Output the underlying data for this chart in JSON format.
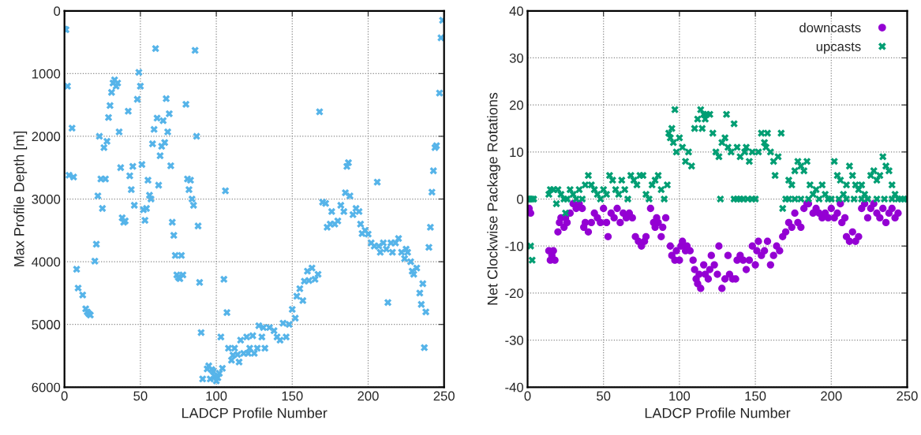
{
  "chart_data": [
    {
      "type": "scatter",
      "xlabel": "LADCP Profile Number",
      "ylabel": "Max Profile Depth [m]",
      "xlim": [
        0,
        250
      ],
      "ylim": [
        6000,
        0
      ],
      "xticks": [
        0,
        50,
        100,
        150,
        200,
        250
      ],
      "yticks": [
        0,
        1000,
        2000,
        3000,
        4000,
        5000,
        6000
      ],
      "grid": true,
      "legend": false,
      "series": [
        {
          "color": "#56b4e9",
          "marker": "cross",
          "x": [
            0,
            1,
            2,
            3,
            5,
            6,
            8,
            9,
            12,
            14,
            15,
            16,
            17,
            20,
            21,
            22,
            23,
            24,
            25,
            26,
            27,
            28,
            29,
            30,
            31,
            32,
            33,
            34,
            35,
            36,
            37,
            38,
            39,
            40,
            42,
            43,
            44,
            45,
            46,
            48,
            49,
            50,
            51,
            52,
            53,
            54,
            55,
            56,
            57,
            58,
            59,
            60,
            61,
            62,
            63,
            64,
            65,
            66,
            67,
            68,
            69,
            70,
            71,
            72,
            73,
            74,
            75,
            76,
            77,
            78,
            80,
            81,
            82,
            83,
            84,
            85,
            86,
            87,
            88,
            89,
            90,
            91,
            94,
            95,
            96,
            97,
            98,
            99,
            100,
            101,
            102,
            103,
            104,
            105,
            106,
            107,
            108,
            110,
            111,
            112,
            114,
            115,
            116,
            118,
            120,
            121,
            122,
            124,
            125,
            127,
            128,
            130,
            131,
            132,
            135,
            138,
            140,
            142,
            144,
            146,
            148,
            150,
            152,
            153,
            155,
            157,
            158,
            160,
            161,
            163,
            165,
            167,
            168,
            170,
            172,
            173,
            175,
            176,
            178,
            180,
            182,
            184,
            185,
            186,
            187,
            188,
            190,
            192,
            194,
            195,
            196,
            198,
            200,
            202,
            204,
            206,
            207,
            208,
            210,
            212,
            213,
            215,
            216,
            218,
            220,
            222,
            224,
            225,
            226,
            228,
            229,
            230,
            232,
            234,
            235,
            236,
            237,
            238,
            240,
            241,
            242,
            243,
            244,
            245,
            247,
            248,
            249
          ],
          "values": [
            290,
            300,
            1200,
            2620,
            1870,
            2650,
            4120,
            4420,
            4530,
            4750,
            4800,
            4830,
            4850,
            3990,
            3720,
            2950,
            2000,
            2680,
            3150,
            2180,
            2680,
            2080,
            1700,
            1510,
            1300,
            1150,
            1100,
            1200,
            1150,
            1930,
            2500,
            3300,
            3370,
            3350,
            1600,
            2630,
            2850,
            2480,
            3100,
            1410,
            980,
            1200,
            2450,
            3170,
            3340,
            3150,
            2700,
            2940,
            3000,
            2120,
            1890,
            600,
            1710,
            2780,
            2310,
            2160,
            1750,
            2100,
            1400,
            1930,
            1640,
            2470,
            3370,
            3580,
            3900,
            4210,
            4250,
            4270,
            3900,
            4210,
            1490,
            2680,
            2850,
            2700,
            3000,
            3100,
            630,
            2000,
            3430,
            4330,
            5130,
            5870,
            5710,
            5660,
            5870,
            5720,
            5750,
            5830,
            5900,
            5850,
            5780,
            5200,
            5700,
            4280,
            2870,
            4810,
            5380,
            5570,
            5490,
            5380,
            5480,
            5600,
            5250,
            5460,
            5200,
            5460,
            5380,
            5180,
            5460,
            5380,
            5020,
            5200,
            5050,
            5380,
            5050,
            5100,
            5200,
            5250,
            4980,
            5200,
            5000,
            4760,
            4900,
            4550,
            4430,
            4620,
            4310,
            4150,
            4300,
            4100,
            4280,
            4200,
            1610,
            3050,
            3070,
            3450,
            3400,
            3200,
            3400,
            3350,
            3100,
            3200,
            2900,
            2480,
            2420,
            2950,
            3250,
            3150,
            3200,
            3400,
            3550,
            3500,
            3560,
            3700,
            3750,
            2730,
            3750,
            3850,
            3700,
            3800,
            4650,
            3700,
            3850,
            3700,
            3630,
            3850,
            3950,
            3800,
            3850,
            4000,
            4150,
            4200,
            4100,
            4500,
            4680,
            4350,
            5370,
            4800,
            3770,
            3450,
            2890,
            2550,
            2180,
            2150,
            1310,
            430,
            150
          ]
        }
      ]
    },
    {
      "type": "scatter",
      "xlabel": "LADCP Profile Number",
      "ylabel": "Net Clockwise Package Rotations",
      "xlim": [
        0,
        250
      ],
      "ylim": [
        -40,
        40
      ],
      "xticks": [
        0,
        50,
        100,
        150,
        200,
        250
      ],
      "yticks": [
        -40,
        -30,
        -20,
        -10,
        0,
        10,
        20,
        30,
        40
      ],
      "grid": true,
      "legend": "top right",
      "series": [
        {
          "name": "downcasts",
          "color": "#9400d3",
          "marker": "circle",
          "x": [
            1,
            2,
            14,
            15,
            16,
            17,
            18,
            20,
            21,
            22,
            24,
            25,
            26,
            28,
            30,
            32,
            34,
            36,
            37,
            38,
            40,
            42,
            44,
            46,
            48,
            50,
            52,
            53,
            55,
            57,
            59,
            61,
            63,
            65,
            67,
            69,
            71,
            73,
            75,
            77,
            78,
            81,
            83,
            84,
            85,
            86,
            88,
            89,
            91,
            94,
            95,
            97,
            98,
            100,
            101,
            102,
            104,
            105,
            107,
            109,
            110,
            111,
            112,
            113,
            114,
            116,
            117,
            119,
            120,
            121,
            123,
            125,
            126,
            128,
            130,
            132,
            133,
            135,
            137,
            138,
            140,
            142,
            144,
            146,
            148,
            150,
            151,
            152,
            154,
            156,
            158,
            160,
            162,
            164,
            166,
            168,
            170,
            172,
            174,
            176,
            178,
            180,
            182,
            184,
            185,
            188,
            190,
            192,
            194,
            196,
            198,
            200,
            202,
            204,
            206,
            207,
            209,
            210,
            212,
            214,
            216,
            218,
            220,
            222,
            224,
            226,
            228,
            230,
            232,
            234,
            236,
            238,
            240,
            242,
            244
          ],
          "values": [
            -2,
            -3,
            -11,
            -13,
            -12,
            -11,
            -13,
            -7,
            -5,
            -4,
            -6,
            -4,
            -5,
            -3,
            -1,
            -2,
            -1,
            -2,
            -6,
            -5,
            -7,
            -5,
            -3,
            -4,
            -5,
            -2,
            -5,
            -8,
            -3,
            -4,
            -2,
            -5,
            -3,
            -4,
            -3,
            -4,
            -8,
            -9,
            -10,
            -9,
            -8,
            -2,
            -5,
            -6,
            -4,
            -5,
            -8,
            -6,
            -4,
            -10,
            -12,
            -13,
            -11,
            -13,
            -10,
            -9,
            -11,
            -10,
            -11,
            -13,
            -15,
            -17,
            -18,
            -16,
            -19,
            -14,
            -16,
            -17,
            -15,
            -12,
            -14,
            -16,
            -10,
            -19,
            -17,
            -12,
            -16,
            -17,
            -17,
            -13,
            -12,
            -13,
            -15,
            -13,
            -10,
            -14,
            -11,
            -9,
            -12,
            -11,
            -9,
            -14,
            -12,
            -10,
            -11,
            -8,
            -7,
            -5,
            -6,
            -3,
            -5,
            -6,
            -2,
            -1,
            -1,
            -3,
            -2,
            -3,
            -4,
            -3,
            -4,
            -2,
            -4,
            -3,
            -1,
            -5,
            -4,
            -8,
            -9,
            -7,
            -9,
            -8,
            -2,
            -1,
            -4,
            -2,
            -1,
            -3,
            -4,
            -2,
            -5,
            -3,
            -2,
            -4,
            -3
          ]
        },
        {
          "name": "upcasts",
          "color": "#009e73",
          "marker": "cross",
          "x": [
            0,
            1,
            2,
            3,
            4,
            2,
            3,
            14,
            15,
            17,
            19,
            20,
            22,
            24,
            25,
            26,
            28,
            30,
            32,
            34,
            36,
            38,
            40,
            42,
            44,
            46,
            48,
            50,
            52,
            54,
            56,
            58,
            60,
            62,
            64,
            66,
            68,
            70,
            72,
            74,
            76,
            78,
            80,
            82,
            84,
            86,
            88,
            90,
            92,
            93,
            94,
            95,
            96,
            97,
            98,
            100,
            102,
            104,
            106,
            108,
            110,
            112,
            114,
            115,
            116,
            117,
            118,
            120,
            122,
            124,
            126,
            127,
            128,
            130,
            131,
            132,
            134,
            136,
            138,
            140,
            142,
            143,
            144,
            146,
            148,
            150,
            152,
            154,
            156,
            157,
            158,
            160,
            162,
            163,
            165,
            167,
            168,
            170,
            172,
            174,
            176,
            178,
            180,
            182,
            184,
            186,
            188,
            190,
            192,
            194,
            196,
            198,
            200,
            202,
            204,
            206,
            208,
            210,
            212,
            214,
            216,
            218,
            220,
            222,
            224,
            226,
            228,
            230,
            232,
            234,
            236,
            238,
            240,
            242,
            244,
            246,
            248,
            250,
            136,
            138,
            140,
            145,
            148,
            172,
            176,
            180,
            185,
            205,
            210,
            215,
            220,
            230,
            235,
            240
          ],
          "values": [
            0,
            0,
            0,
            0,
            0,
            -10,
            -13,
            1,
            2,
            2,
            -1,
            2,
            1,
            0,
            -3,
            0,
            2,
            1,
            0,
            2,
            0,
            3,
            5,
            3,
            2,
            1,
            0,
            2,
            1,
            5,
            4,
            2,
            1,
            4,
            2,
            0,
            5,
            4,
            3,
            5,
            5,
            1,
            0,
            3,
            4,
            5,
            2,
            0,
            3,
            14,
            13,
            15,
            12,
            19,
            10,
            13,
            11,
            8,
            10,
            7,
            15,
            17,
            19,
            15,
            18,
            17,
            18,
            18,
            14,
            10,
            9,
            0,
            12,
            13,
            18,
            11,
            10,
            16,
            11,
            9,
            0,
            10,
            11,
            8,
            10,
            0,
            10,
            14,
            12,
            11,
            14,
            10,
            8,
            5,
            9,
            14,
            -2,
            0,
            4,
            3,
            6,
            8,
            7,
            6,
            8,
            3,
            1,
            2,
            0,
            3,
            1,
            0,
            0,
            8,
            5,
            4,
            1,
            3,
            7,
            5,
            3,
            2,
            3,
            1,
            0,
            5,
            6,
            4,
            5,
            9,
            7,
            6,
            3,
            1,
            0,
            0,
            0,
            0,
            0,
            0,
            0,
            0,
            0,
            0,
            0,
            0,
            0,
            0,
            0,
            0,
            0,
            0,
            0,
            0
          ]
        }
      ]
    }
  ]
}
